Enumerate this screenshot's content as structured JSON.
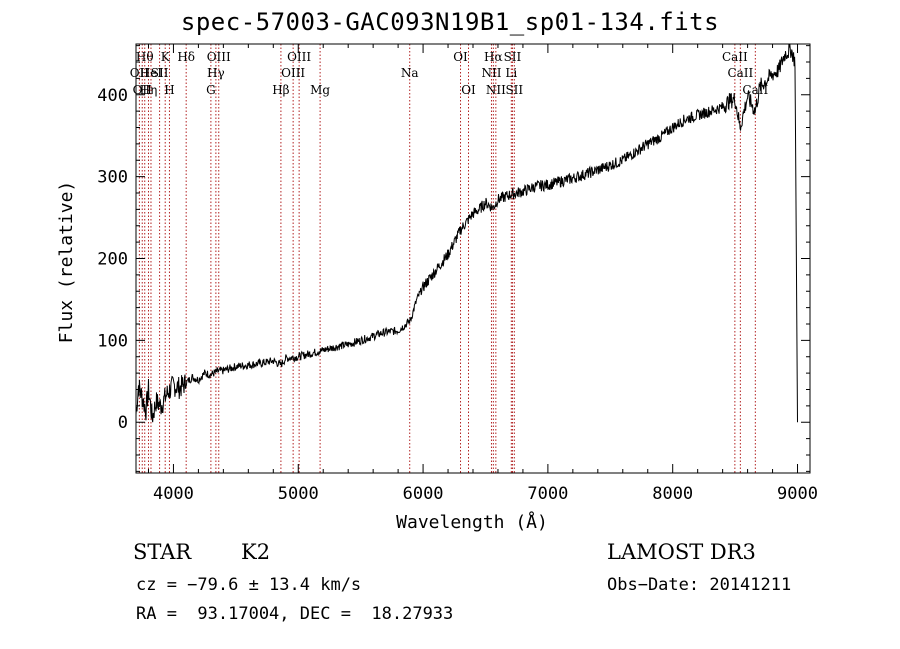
{
  "title": "spec-57003-GAC093N19B1_sp01-134.fits",
  "chart_data": {
    "type": "line",
    "xlabel": "Wavelength (Å)",
    "ylabel": "Flux (relative)",
    "xlim": [
      3700,
      9100
    ],
    "ylim": [
      -62,
      462
    ],
    "xticks": [
      4000,
      5000,
      6000,
      7000,
      8000,
      9000
    ],
    "yticks": [
      0,
      100,
      200,
      300,
      400
    ],
    "spectrum": {
      "x": [
        3700,
        3720,
        3750,
        3780,
        3800,
        3830,
        3860,
        3900,
        3950,
        4000,
        4050,
        4100,
        4150,
        4200,
        4250,
        4300,
        4350,
        4400,
        4500,
        4600,
        4700,
        4800,
        4860,
        4900,
        5000,
        5100,
        5200,
        5300,
        5400,
        5500,
        5600,
        5650,
        5700,
        5800,
        5850,
        5900,
        5950,
        6000,
        6050,
        6100,
        6150,
        6200,
        6250,
        6300,
        6350,
        6400,
        6450,
        6500,
        6560,
        6600,
        6700,
        6800,
        6900,
        7000,
        7200,
        7400,
        7600,
        7700,
        7800,
        7900,
        8000,
        8100,
        8200,
        8300,
        8400,
        8450,
        8500,
        8540,
        8600,
        8660,
        8700,
        8800,
        8850,
        8900,
        8950,
        8980,
        9000
      ],
      "y": [
        10,
        45,
        30,
        15,
        40,
        5,
        25,
        20,
        35,
        45,
        42,
        48,
        55,
        52,
        60,
        58,
        62,
        63,
        68,
        70,
        72,
        75,
        70,
        78,
        80,
        84,
        88,
        92,
        95,
        100,
        105,
        108,
        110,
        112,
        118,
        125,
        150,
        165,
        175,
        185,
        195,
        205,
        220,
        235,
        245,
        255,
        260,
        268,
        262,
        272,
        278,
        282,
        288,
        290,
        298,
        308,
        320,
        330,
        340,
        348,
        360,
        370,
        375,
        380,
        385,
        392,
        395,
        360,
        398,
        380,
        410,
        425,
        430,
        450,
        455,
        440,
        0
      ]
    },
    "lines": [
      {
        "wl": 3727,
        "label": "OII",
        "row": 2
      },
      {
        "wl": 3750,
        "label": "OII",
        "row": 3
      },
      {
        "wl": 3770,
        "label": "Hθ",
        "row": 1
      },
      {
        "wl": 3800,
        "label": "Hη",
        "row": 3
      },
      {
        "wl": 3820,
        "label": "HeI",
        "row": 2
      },
      {
        "wl": 3889,
        "label": "SII",
        "row": 2
      },
      {
        "wl": 3934,
        "label": "K",
        "row": 1
      },
      {
        "wl": 3968,
        "label": "H",
        "row": 3
      },
      {
        "wl": 4102,
        "label": "Hδ",
        "row": 1
      },
      {
        "wl": 4300,
        "label": "G",
        "row": 3
      },
      {
        "wl": 4340,
        "label": "Hγ",
        "row": 2
      },
      {
        "wl": 4363,
        "label": "OIII",
        "row": 1
      },
      {
        "wl": 4861,
        "label": "Hβ",
        "row": 3
      },
      {
        "wl": 4959,
        "label": "OIII",
        "row": 2
      },
      {
        "wl": 5007,
        "label": "OIII",
        "row": 1
      },
      {
        "wl": 5175,
        "label": "Mg",
        "row": 3
      },
      {
        "wl": 5893,
        "label": "Na",
        "row": 2
      },
      {
        "wl": 6300,
        "label": "OI",
        "row": 1
      },
      {
        "wl": 6364,
        "label": "OI",
        "row": 3
      },
      {
        "wl": 6548,
        "label": "NII",
        "row": 2
      },
      {
        "wl": 6563,
        "label": "Hα",
        "row": 1
      },
      {
        "wl": 6583,
        "label": "NII",
        "row": 3
      },
      {
        "wl": 6707,
        "label": "Li",
        "row": 2
      },
      {
        "wl": 6716,
        "label": "SII",
        "row": 1
      },
      {
        "wl": 6731,
        "label": "SII",
        "row": 3
      },
      {
        "wl": 8498,
        "label": "CaII",
        "row": 1
      },
      {
        "wl": 8542,
        "label": "CaII",
        "row": 2
      },
      {
        "wl": 8662,
        "label": "CaII",
        "row": 3
      }
    ]
  },
  "info": {
    "class": "STAR",
    "subclass": "K2",
    "survey": "LAMOST DR3",
    "cz": "cz = −79.6 ± 13.4 km/s",
    "obs_date": "Obs−Date: 20141211",
    "radec": "RA =  93.17004, DEC =  18.27933"
  },
  "colors": {
    "line_marker": "#b22222",
    "spectrum": "#000000",
    "axes": "#000000"
  }
}
